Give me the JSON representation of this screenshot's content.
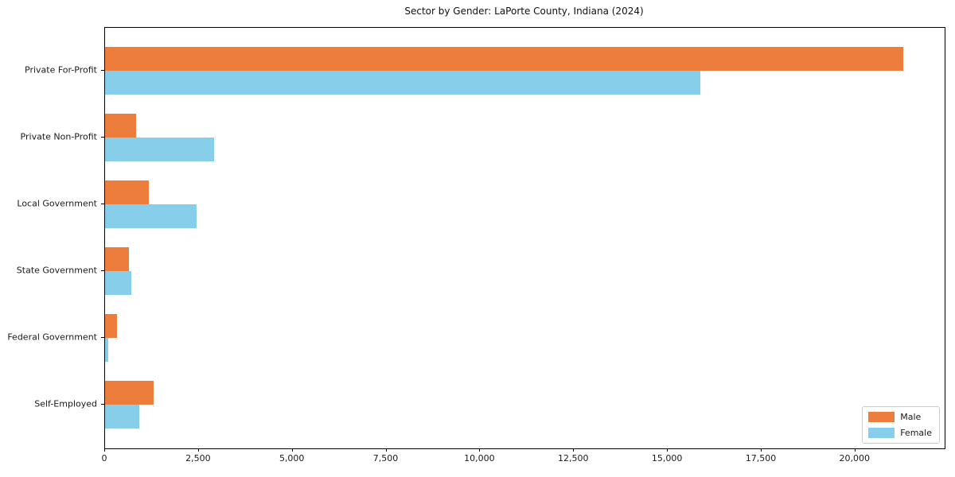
{
  "title": "Sector by Gender: LaPorte County, Indiana (2024)",
  "legend": {
    "position": "lower right",
    "entries": [
      {
        "label": "Male",
        "color": "#ed7d3c"
      },
      {
        "label": "Female",
        "color": "#87ceeb"
      }
    ]
  },
  "chart_data": {
    "type": "bar",
    "orientation": "horizontal",
    "title": "Sector by Gender: LaPorte County, Indiana (2024)",
    "categories": [
      "Private For-Profit",
      "Private Non-Profit",
      "Local Government",
      "State Government",
      "Federal Government",
      "Self-Employed"
    ],
    "series": [
      {
        "name": "Male",
        "color": "#ed7d3c",
        "values": [
          21270,
          830,
          1170,
          640,
          320,
          1290
        ]
      },
      {
        "name": "Female",
        "color": "#87ceeb",
        "values": [
          15870,
          2900,
          2440,
          700,
          75,
          910
        ]
      }
    ],
    "xlabel": "",
    "ylabel": "",
    "xlim": [
      0,
      22380
    ],
    "xticks": [
      0,
      2500,
      5000,
      7500,
      10000,
      12500,
      15000,
      17500,
      20000
    ],
    "xtick_labels": [
      "0",
      "2,500",
      "5,000",
      "7,500",
      "10,000",
      "12,500",
      "15,000",
      "17,500",
      "20,000"
    ],
    "grid": false,
    "legend_position": "lower right"
  }
}
